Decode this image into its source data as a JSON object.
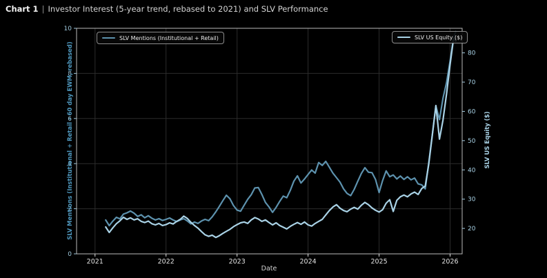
{
  "title": {
    "prefix": "Chart 1",
    "separator": "|",
    "text": "Investor Interest (5-year trend, rebased to 2021) and SLV Performance"
  },
  "legends": {
    "mentions": "SLV Mentions (Institutional + Retail)",
    "equity": "SLV US Equity ($)"
  },
  "axes": {
    "x": {
      "label": "Date",
      "tick_labels": [
        "2021",
        "2022",
        "2023",
        "2024",
        "2025",
        "2026"
      ],
      "tick_values": [
        2021,
        2022,
        2023,
        2024,
        2025,
        2026
      ],
      "range": [
        2020.74,
        2026.17
      ]
    },
    "left": {
      "label": "SLV Mentions (Institutional + Retail - 60 day EWM, rebased)",
      "ticks": [
        0,
        2,
        4,
        6,
        8,
        10
      ],
      "range": [
        0,
        10
      ],
      "tick_color": "#9fc9dd"
    },
    "right": {
      "label": "SLV US Equity ($)",
      "ticks": [
        20,
        30,
        40,
        50,
        60,
        70,
        80
      ],
      "range": [
        11.3,
        88.4
      ],
      "tick_color": "#a9d2e6"
    }
  },
  "colors": {
    "background": "#000000",
    "grid": "#2c2c2c",
    "spine": "#bcbcbc",
    "x_tick_color": "#e2e2e2",
    "mentions_line": "#5d92ae",
    "equity_line": "#a9d2e6"
  },
  "chart_data": {
    "type": "line",
    "title": "Chart 1 | Investor Interest (5-year trend, rebased to 2021) and SLV Performance",
    "xlabel": "Date",
    "ylabel_left": "SLV Mentions (Institutional + Retail - 60 day EWM, rebased)",
    "ylabel_right": "SLV US Equity ($)",
    "xlim": [
      2020.74,
      2026.17
    ],
    "left_ylim": [
      0,
      10
    ],
    "right_ylim": [
      11.3,
      88.4
    ],
    "grid": true,
    "legend_position": "upper-left and upper-right",
    "x": [
      2021.15,
      2021.2,
      2021.25,
      2021.3,
      2021.35,
      2021.4,
      2021.45,
      2021.5,
      2021.55,
      2021.6,
      2021.65,
      2021.7,
      2021.75,
      2021.8,
      2021.85,
      2021.9,
      2021.95,
      2022.0,
      2022.05,
      2022.1,
      2022.15,
      2022.2,
      2022.25,
      2022.3,
      2022.35,
      2022.4,
      2022.45,
      2022.5,
      2022.55,
      2022.6,
      2022.65,
      2022.7,
      2022.75,
      2022.8,
      2022.85,
      2022.9,
      2022.95,
      2023.0,
      2023.05,
      2023.1,
      2023.15,
      2023.2,
      2023.25,
      2023.3,
      2023.35,
      2023.4,
      2023.45,
      2023.5,
      2023.55,
      2023.6,
      2023.65,
      2023.7,
      2023.75,
      2023.8,
      2023.85,
      2023.9,
      2023.95,
      2024.0,
      2024.05,
      2024.1,
      2024.15,
      2024.2,
      2024.25,
      2024.3,
      2024.35,
      2024.4,
      2024.45,
      2024.5,
      2024.55,
      2024.6,
      2024.65,
      2024.7,
      2024.75,
      2024.8,
      2024.85,
      2024.9,
      2024.95,
      2025.0,
      2025.05,
      2025.1,
      2025.15,
      2025.2,
      2025.25,
      2025.3,
      2025.35,
      2025.4,
      2025.45,
      2025.5,
      2025.55,
      2025.6,
      2025.65,
      2025.7,
      2025.75,
      2025.8,
      2025.85,
      2025.9,
      2025.95,
      2026.0,
      2026.05,
      2026.08
    ],
    "series": [
      {
        "name": "SLV Mentions (Institutional + Retail)",
        "axis": "left",
        "color": "#5d92ae",
        "values": [
          1.5,
          1.25,
          1.45,
          1.62,
          1.55,
          1.76,
          1.82,
          1.9,
          1.8,
          1.66,
          1.73,
          1.6,
          1.69,
          1.58,
          1.5,
          1.56,
          1.48,
          1.53,
          1.59,
          1.5,
          1.43,
          1.5,
          1.56,
          1.46,
          1.33,
          1.41,
          1.35,
          1.46,
          1.53,
          1.47,
          1.64,
          1.86,
          2.1,
          2.36,
          2.6,
          2.44,
          2.14,
          1.94,
          1.89,
          2.16,
          2.42,
          2.62,
          2.92,
          2.94,
          2.63,
          2.28,
          2.08,
          1.84,
          2.06,
          2.32,
          2.56,
          2.49,
          2.82,
          3.22,
          3.46,
          3.14,
          3.32,
          3.52,
          3.72,
          3.58,
          4.05,
          3.92,
          4.1,
          3.84,
          3.58,
          3.38,
          3.18,
          2.88,
          2.68,
          2.58,
          2.86,
          3.22,
          3.56,
          3.82,
          3.62,
          3.6,
          3.3,
          2.72,
          3.25,
          3.68,
          3.42,
          3.5,
          3.32,
          3.45,
          3.3,
          3.42,
          3.28,
          3.36,
          3.1,
          3.06,
          2.88,
          4.05,
          5.3,
          6.55,
          5.95,
          6.9,
          7.6,
          8.55,
          9.6,
          9.85
        ]
      },
      {
        "name": "SLV US Equity ($)",
        "axis": "right",
        "color": "#a9d2e6",
        "values": [
          20.5,
          18.6,
          20.2,
          21.6,
          22.6,
          23.8,
          23.1,
          23.6,
          22.9,
          23.3,
          22.4,
          22.0,
          22.5,
          21.6,
          21.2,
          21.7,
          21.0,
          21.3,
          21.9,
          21.5,
          22.4,
          23.1,
          24.2,
          23.4,
          22.1,
          21.0,
          20.1,
          18.9,
          17.8,
          17.3,
          17.7,
          16.9,
          17.5,
          18.3,
          19.0,
          19.7,
          20.6,
          21.3,
          21.9,
          22.2,
          21.7,
          22.9,
          23.7,
          23.2,
          22.4,
          22.9,
          22.0,
          21.2,
          21.9,
          21.0,
          20.4,
          19.8,
          20.7,
          21.4,
          22.0,
          21.4,
          22.2,
          21.2,
          20.8,
          21.7,
          22.4,
          23.1,
          24.6,
          26.1,
          27.3,
          28.1,
          26.9,
          26.1,
          25.7,
          26.6,
          27.2,
          26.6,
          27.9,
          28.9,
          28.1,
          27.0,
          26.2,
          25.6,
          26.4,
          28.6,
          29.8,
          25.8,
          29.6,
          30.8,
          31.4,
          30.8,
          31.8,
          32.4,
          31.6,
          33.6,
          34.5,
          42.0,
          52.0,
          62.0,
          50.5,
          57.0,
          66.0,
          76.0,
          85.0,
          84.0
        ]
      }
    ]
  }
}
